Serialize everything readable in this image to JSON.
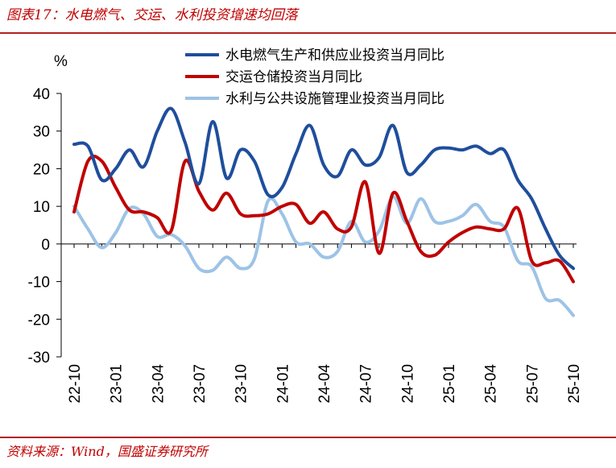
{
  "figure": {
    "title": "图表17：水电燃气、交运、水利投资增速均回落",
    "source": "资料来源：Wind，国盛证券研究所"
  },
  "chart_data": {
    "type": "line",
    "ylabel": "%",
    "ylim": [
      -30,
      40
    ],
    "yticks": [
      40,
      30,
      20,
      10,
      0,
      -10,
      -20,
      -30
    ],
    "x_labels": [
      "22-10",
      "23-01",
      "23-04",
      "23-07",
      "23-10",
      "24-01",
      "24-04",
      "24-07",
      "24-10",
      "25-01",
      "25-04",
      "25-07",
      "25-10"
    ],
    "x": [
      "22-10",
      "22-11",
      "22-12",
      "23-01",
      "23-02",
      "23-03",
      "23-04",
      "23-05",
      "23-06",
      "23-07",
      "23-08",
      "23-09",
      "23-10",
      "23-11",
      "23-12",
      "24-01",
      "24-02",
      "24-03",
      "24-04",
      "24-05",
      "24-06",
      "24-07",
      "24-08",
      "24-09",
      "24-10",
      "24-11",
      "24-12",
      "25-01",
      "25-02",
      "25-03",
      "25-04",
      "25-05",
      "25-06",
      "25-07",
      "25-08",
      "25-09",
      "25-10"
    ],
    "series": [
      {
        "name": "水电燃气生产和供应业投资当月同比",
        "color": "#1f4e9c",
        "values": [
          26.5,
          26,
          17,
          20,
          25,
          20.5,
          30,
          36,
          27,
          16,
          32.5,
          17.5,
          25,
          22,
          13,
          15,
          24,
          31.5,
          21,
          18,
          25,
          21,
          23,
          31.5,
          19,
          21,
          25,
          25.5,
          25,
          26,
          24,
          25,
          17,
          12,
          4,
          -3,
          -6.5
        ]
      },
      {
        "name": "交运仓储投资当月同比",
        "color": "#c00000",
        "values": [
          8.5,
          22,
          22,
          15,
          9,
          8.5,
          7,
          3.5,
          22,
          14,
          9,
          13.5,
          8,
          7.5,
          8,
          10,
          10.5,
          5.5,
          8.5,
          4,
          4.5,
          16.5,
          -2.5,
          13.5,
          6,
          -2,
          -3,
          0.5,
          3,
          4.5,
          4,
          4,
          9.5,
          -4.5,
          -5,
          -4.5,
          -10
        ]
      },
      {
        "name": "水利与公共设施管理业投资当月同比",
        "color": "#9dc3e6",
        "values": [
          10,
          4,
          -1,
          3,
          9.5,
          8,
          2,
          2.5,
          -0.5,
          -6.5,
          -7,
          -3.5,
          -6.5,
          -4,
          11.5,
          8,
          0.5,
          0,
          -3.5,
          -2,
          6,
          0.5,
          3.5,
          12.5,
          5.5,
          12,
          6,
          6,
          7.5,
          10.5,
          6,
          4.5,
          -4.5,
          -6,
          -14.5,
          -15,
          -19
        ]
      }
    ]
  }
}
